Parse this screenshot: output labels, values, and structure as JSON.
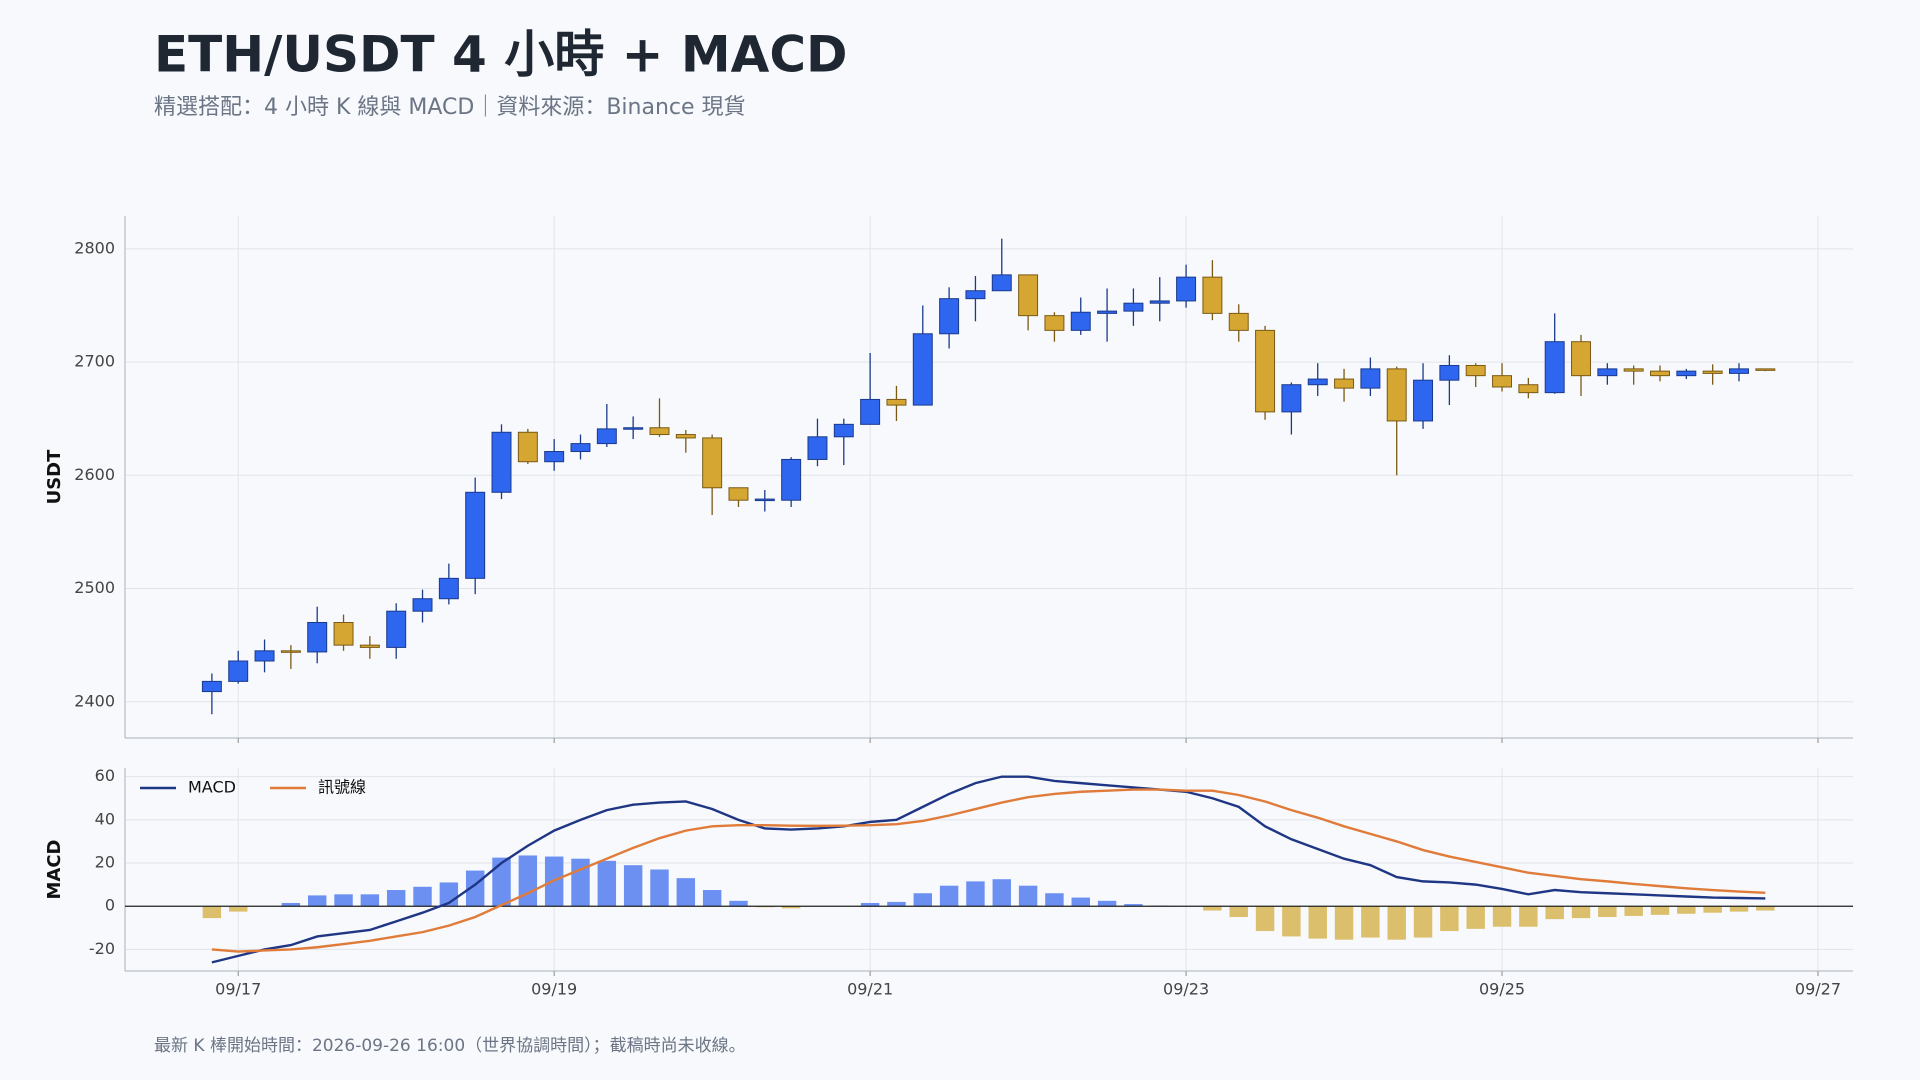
{
  "title": "ETH/USDT 4 小時 + MACD",
  "subtitle": "精選搭配：4 小時 K 線與 MACD｜資料來源：Binance 現貨",
  "footnote": "最新 K 棒開始時間：2026-09-26 16:00（世界協調時間）；截稿時尚未收線。",
  "chart_data": [
    {
      "type": "candlestick",
      "ylabel": "USDT",
      "up_color": "#2f66f0",
      "down_color": "#d6a632",
      "up_edge": "#1b3a8c",
      "down_edge": "#7a5a14",
      "open": [
        2409,
        2418,
        2436,
        2445,
        2444,
        2470,
        2450,
        2448,
        2480,
        2491,
        2509,
        2585,
        2638,
        2612,
        2621,
        2628,
        2641,
        2642,
        2636,
        2633,
        2589,
        2578,
        2578,
        2614,
        2634,
        2645,
        2667,
        2662,
        2725,
        2756,
        2763,
        2777,
        2741,
        2728,
        2743,
        2745,
        2752,
        2754,
        2775,
        2743,
        2728,
        2656,
        2680,
        2685,
        2677,
        2694,
        2648,
        2684,
        2697,
        2688,
        2680,
        2673,
        2718,
        2688,
        2694,
        2692,
        2688,
        2692,
        2690,
        2694
      ],
      "high": [
        2425,
        2445,
        2455,
        2450,
        2484,
        2477,
        2458,
        2487,
        2499,
        2522,
        2598,
        2645,
        2641,
        2632,
        2636,
        2663,
        2652,
        2668,
        2640,
        2636,
        2589,
        2587,
        2616,
        2650,
        2650,
        2708,
        2679,
        2750,
        2766,
        2776,
        2809,
        2777,
        2744,
        2757,
        2765,
        2765,
        2775,
        2786,
        2790,
        2751,
        2732,
        2682,
        2699,
        2694,
        2704,
        2696,
        2699,
        2706,
        2699,
        2699,
        2686,
        2743,
        2724,
        2699,
        2697,
        2697,
        2694,
        2698,
        2699,
        2694
      ],
      "low": [
        2389,
        2416,
        2426,
        2429,
        2434,
        2445,
        2438,
        2438,
        2470,
        2486,
        2495,
        2579,
        2610,
        2604,
        2614,
        2625,
        2632,
        2634,
        2620,
        2565,
        2572,
        2568,
        2572,
        2608,
        2609,
        2645,
        2648,
        2662,
        2712,
        2736,
        2763,
        2728,
        2718,
        2724,
        2718,
        2732,
        2736,
        2748,
        2737,
        2718,
        2649,
        2636,
        2670,
        2665,
        2670,
        2600,
        2641,
        2662,
        2678,
        2674,
        2668,
        2672,
        2670,
        2680,
        2680,
        2683,
        2685,
        2680,
        2683,
        2692
      ],
      "close": [
        2418,
        2436,
        2445,
        2444,
        2470,
        2450,
        2448,
        2480,
        2491,
        2509,
        2585,
        2638,
        2612,
        2621,
        2628,
        2641,
        2642,
        2636,
        2633,
        2589,
        2578,
        2579,
        2614,
        2634,
        2645,
        2667,
        2662,
        2725,
        2756,
        2763,
        2777,
        2741,
        2728,
        2744,
        2745,
        2752,
        2754,
        2775,
        2743,
        2728,
        2656,
        2680,
        2685,
        2677,
        2694,
        2648,
        2684,
        2697,
        2688,
        2678,
        2673,
        2718,
        2688,
        2694,
        2692,
        2688,
        2692,
        2690,
        2694,
        2693
      ],
      "ylim": [
        2368,
        2829
      ],
      "yticks": [
        2400,
        2500,
        2600,
        2700,
        2800
      ],
      "grid": true
    },
    {
      "type": "macd",
      "ylabel": "MACD",
      "legend": "upper left",
      "grid": true,
      "xlim": [
        -3.3,
        62.33
      ],
      "xticks": [
        {
          "value": 1,
          "label": "09/17"
        },
        {
          "value": 13,
          "label": "09/19"
        },
        {
          "value": 25,
          "label": "09/21"
        },
        {
          "value": 37,
          "label": "09/23"
        },
        {
          "value": 49,
          "label": "09/25"
        },
        {
          "value": 61,
          "label": "09/27"
        }
      ],
      "ylim": [
        -30,
        64
      ],
      "yticks": [
        -20,
        0,
        20,
        40,
        60
      ],
      "histogram": {
        "up_color": "#6b90f2",
        "down_color": "#dcbf6c",
        "values": [
          -5.5,
          -2.5,
          0,
          1.5,
          5,
          5.5,
          5.5,
          7.5,
          9,
          11,
          16.5,
          22.5,
          23.5,
          23,
          22,
          21,
          19,
          17,
          13,
          7.5,
          2.5,
          -0.5,
          -1,
          0,
          0,
          1.5,
          2,
          6,
          9.5,
          11.5,
          12.5,
          9.5,
          6,
          4,
          2.5,
          1,
          0.3,
          0,
          -2,
          -5,
          -11.5,
          -14,
          -15,
          -15.5,
          -14.5,
          -15.5,
          -14.5,
          -11.5,
          -10.5,
          -9.5,
          -9.5,
          -6,
          -5.5,
          -5,
          -4.5,
          -4,
          -3.5,
          -3,
          -2.5,
          -2
        ]
      },
      "series": [
        {
          "name": "MACD",
          "color": "#1f3685",
          "values": [
            -26,
            -23,
            -20,
            -18,
            -14,
            -12.5,
            -11,
            -7,
            -3,
            1.5,
            10,
            20,
            28,
            35,
            40,
            44.5,
            47,
            48,
            48.5,
            45,
            40,
            36,
            35.5,
            36,
            37,
            39,
            40,
            46,
            52,
            57,
            60,
            60,
            58,
            57,
            56,
            55,
            54,
            53,
            50,
            46,
            37,
            31,
            26.5,
            22,
            19,
            13.5,
            11.5,
            11,
            10,
            8,
            5.5,
            7.5,
            6.5,
            6,
            5.5,
            5,
            4.5,
            4,
            3.8,
            3.6
          ]
        },
        {
          "name": "訊號線",
          "color": "#e07b39",
          "values": [
            -20,
            -21,
            -20.5,
            -20,
            -19,
            -17.5,
            -16,
            -14,
            -12,
            -9,
            -5,
            0.5,
            6,
            12,
            17,
            22,
            27,
            31.5,
            35,
            37,
            37.5,
            37.5,
            37.3,
            37.2,
            37.3,
            37.5,
            38,
            39.5,
            42,
            45,
            48,
            50.5,
            52,
            53,
            53.5,
            54,
            54,
            53.5,
            53.5,
            51.5,
            48.5,
            44.5,
            41,
            37,
            33.5,
            30,
            26,
            23,
            20.5,
            18,
            15.5,
            14,
            12.5,
            11.5,
            10.3,
            9.3,
            8.3,
            7.5,
            6.8,
            6.2
          ]
        }
      ]
    }
  ]
}
